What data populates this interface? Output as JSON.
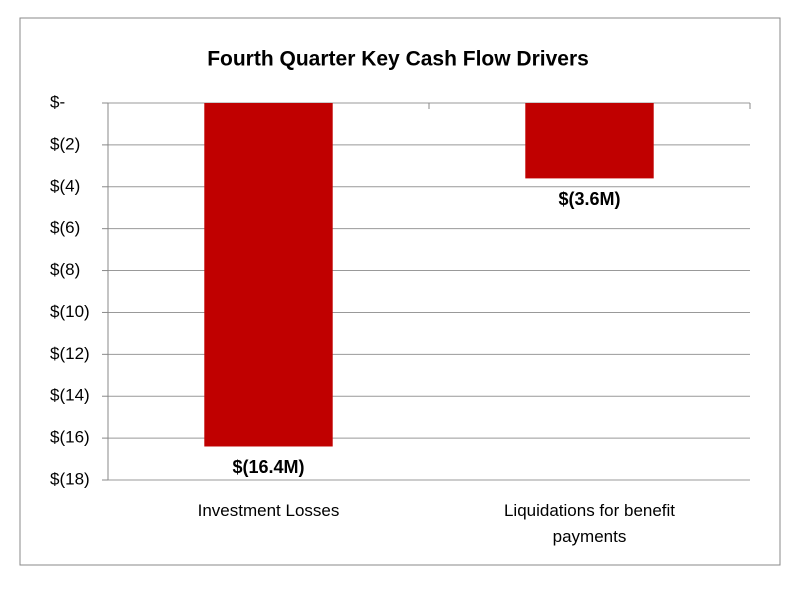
{
  "chart_data": {
    "type": "bar",
    "title": "Fourth Quarter Key Cash Flow Drivers",
    "categories": [
      "Investment Losses",
      "Liquidations for benefit payments"
    ],
    "values": [
      -16.4,
      -3.6
    ],
    "value_labels": [
      "$(16.4M)",
      "$(3.6M)"
    ],
    "color": "#c00000",
    "label_color": "#ff0000",
    "ylim": [
      -18,
      0
    ],
    "yticks": [
      {
        "value": 0,
        "label": "$-"
      },
      {
        "value": -2,
        "label": "$(2)"
      },
      {
        "value": -4,
        "label": "$(4)"
      },
      {
        "value": -6,
        "label": "$(6)"
      },
      {
        "value": -8,
        "label": "$(8)"
      },
      {
        "value": -10,
        "label": "$(10)"
      },
      {
        "value": -12,
        "label": "$(12)"
      },
      {
        "value": -14,
        "label": "$(14)"
      },
      {
        "value": -16,
        "label": "$(16)"
      },
      {
        "value": -18,
        "label": "$(18)"
      }
    ],
    "grid": true
  }
}
